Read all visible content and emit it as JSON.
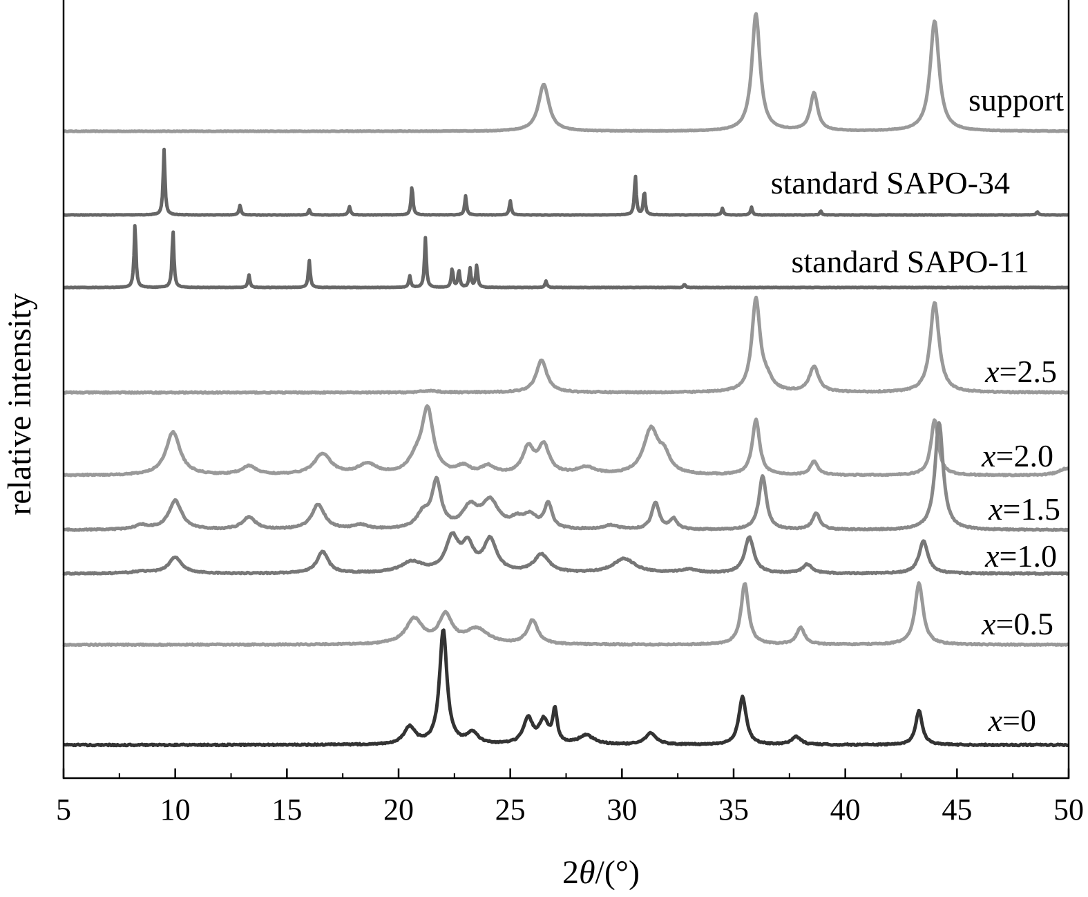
{
  "chart_data": {
    "type": "line",
    "xlabel_prefix": "2",
    "xlabel_symbol": "θ",
    "xlabel_suffix": "/(°)",
    "ylabel": "relative intensity",
    "xlim": [
      5,
      50
    ],
    "xticks": [
      5,
      10,
      15,
      20,
      25,
      30,
      35,
      40,
      45,
      50
    ],
    "grid": false,
    "legend": "inline labels at right",
    "series": [
      {
        "name": "support",
        "label_var": "",
        "label_value": "support",
        "color": "#999999",
        "peaks": [
          [
            26.5,
            1.0,
            0.28
          ],
          [
            36.0,
            2.5,
            0.22
          ],
          [
            38.6,
            0.8,
            0.2
          ],
          [
            44.0,
            2.35,
            0.24
          ]
        ]
      },
      {
        "name": "standard SAPO-34",
        "label_var": "",
        "label_value": "standard SAPO-34",
        "color": "#666666",
        "peaks": [
          [
            9.5,
            1.0,
            0.05
          ],
          [
            12.9,
            0.15,
            0.05
          ],
          [
            16.0,
            0.08,
            0.05
          ],
          [
            17.8,
            0.13,
            0.05
          ],
          [
            20.6,
            0.44,
            0.05
          ],
          [
            23.0,
            0.29,
            0.05
          ],
          [
            25.0,
            0.22,
            0.05
          ],
          [
            30.6,
            0.6,
            0.05
          ],
          [
            31.0,
            0.36,
            0.05
          ],
          [
            34.5,
            0.1,
            0.05
          ],
          [
            35.8,
            0.12,
            0.05
          ],
          [
            38.9,
            0.06,
            0.05
          ],
          [
            48.6,
            0.05,
            0.05
          ]
        ]
      },
      {
        "name": "standard SAPO-11",
        "label_var": "",
        "label_value": "standard SAPO-11",
        "color": "#666666",
        "peaks": [
          [
            8.2,
            1.0,
            0.05
          ],
          [
            9.9,
            0.9,
            0.05
          ],
          [
            13.3,
            0.2,
            0.05
          ],
          [
            16.0,
            0.43,
            0.05
          ],
          [
            20.5,
            0.18,
            0.05
          ],
          [
            21.2,
            0.78,
            0.05
          ],
          [
            22.4,
            0.3,
            0.05
          ],
          [
            22.7,
            0.27,
            0.05
          ],
          [
            23.2,
            0.3,
            0.05
          ],
          [
            23.5,
            0.35,
            0.05
          ],
          [
            26.6,
            0.1,
            0.05
          ],
          [
            32.8,
            0.05,
            0.05
          ]
        ]
      },
      {
        "name": "x=2.5",
        "label_var": "x",
        "label_value": "=2.5",
        "color": "#999999",
        "peaks": [
          [
            21.4,
            0.05,
            0.4
          ],
          [
            26.4,
            0.95,
            0.28
          ],
          [
            36.0,
            2.67,
            0.22
          ],
          [
            36.5,
            0.3,
            0.3
          ],
          [
            38.6,
            0.73,
            0.25
          ],
          [
            44.0,
            2.6,
            0.24
          ]
        ]
      },
      {
        "name": "x=2.0",
        "label_var": "x",
        "label_value": "=2.0",
        "color": "#999999",
        "peaks": [
          [
            9.9,
            1.25,
            0.38
          ],
          [
            13.3,
            0.25,
            0.4
          ],
          [
            16.6,
            0.6,
            0.45
          ],
          [
            18.6,
            0.3,
            0.5
          ],
          [
            21.3,
            1.82,
            0.3
          ],
          [
            20.8,
            0.4,
            0.4
          ],
          [
            22.9,
            0.22,
            0.35
          ],
          [
            24.0,
            0.23,
            0.35
          ],
          [
            25.8,
            0.75,
            0.3
          ],
          [
            26.5,
            0.82,
            0.3
          ],
          [
            28.4,
            0.2,
            0.5
          ],
          [
            31.3,
            1.3,
            0.4
          ],
          [
            31.9,
            0.45,
            0.3
          ],
          [
            36.0,
            1.6,
            0.2
          ],
          [
            38.6,
            0.4,
            0.2
          ],
          [
            44.0,
            1.6,
            0.2
          ],
          [
            49.9,
            0.2,
            0.4
          ]
        ]
      },
      {
        "name": "x=1.5",
        "label_var": "x",
        "label_value": "=1.5",
        "color": "#888888",
        "peaks": [
          [
            8.5,
            0.1,
            0.4
          ],
          [
            10.0,
            0.7,
            0.35
          ],
          [
            13.3,
            0.3,
            0.35
          ],
          [
            16.4,
            0.6,
            0.35
          ],
          [
            18.3,
            0.1,
            0.4
          ],
          [
            21.1,
            0.35,
            0.35
          ],
          [
            21.7,
            1.1,
            0.25
          ],
          [
            23.2,
            0.5,
            0.4
          ],
          [
            24.1,
            0.65,
            0.45
          ],
          [
            25.3,
            0.2,
            0.35
          ],
          [
            25.9,
            0.3,
            0.35
          ],
          [
            26.7,
            0.6,
            0.2
          ],
          [
            29.5,
            0.1,
            0.4
          ],
          [
            31.5,
            0.65,
            0.2
          ],
          [
            32.3,
            0.25,
            0.2
          ],
          [
            36.3,
            1.3,
            0.2
          ],
          [
            38.7,
            0.4,
            0.2
          ],
          [
            44.2,
            2.6,
            0.22
          ]
        ]
      },
      {
        "name": "x=1.0",
        "label_var": "x",
        "label_value": "=1.0",
        "color": "#777777",
        "peaks": [
          [
            8.5,
            0.05,
            0.5
          ],
          [
            10.0,
            0.45,
            0.35
          ],
          [
            16.6,
            0.6,
            0.3
          ],
          [
            20.6,
            0.3,
            0.6
          ],
          [
            22.4,
            0.95,
            0.35
          ],
          [
            23.1,
            0.7,
            0.3
          ],
          [
            24.1,
            0.9,
            0.35
          ],
          [
            26.4,
            0.5,
            0.4
          ],
          [
            30.1,
            0.4,
            0.6
          ],
          [
            33.0,
            0.1,
            0.5
          ],
          [
            35.7,
            1.0,
            0.25
          ],
          [
            38.3,
            0.25,
            0.25
          ],
          [
            43.5,
            0.9,
            0.24
          ]
        ]
      },
      {
        "name": "x=0.5",
        "label_var": "x",
        "label_value": "=0.5",
        "color": "#999999",
        "peaks": [
          [
            20.7,
            0.75,
            0.45
          ],
          [
            22.1,
            0.85,
            0.35
          ],
          [
            23.5,
            0.45,
            0.6
          ],
          [
            26.0,
            0.72,
            0.28
          ],
          [
            35.5,
            1.85,
            0.2
          ],
          [
            38.0,
            0.5,
            0.22
          ],
          [
            43.3,
            1.85,
            0.22
          ]
        ]
      },
      {
        "name": "x=0",
        "label_var": "x",
        "label_value": "=0",
        "color": "#333333",
        "peaks": [
          [
            20.5,
            0.15,
            0.3
          ],
          [
            22.0,
            1.0,
            0.2
          ],
          [
            23.3,
            0.1,
            0.3
          ],
          [
            25.8,
            0.22,
            0.25
          ],
          [
            26.5,
            0.2,
            0.25
          ],
          [
            27.0,
            0.28,
            0.12
          ],
          [
            28.4,
            0.08,
            0.4
          ],
          [
            31.3,
            0.1,
            0.3
          ],
          [
            35.4,
            0.42,
            0.2
          ],
          [
            37.8,
            0.07,
            0.25
          ],
          [
            43.3,
            0.3,
            0.18
          ]
        ]
      }
    ]
  }
}
